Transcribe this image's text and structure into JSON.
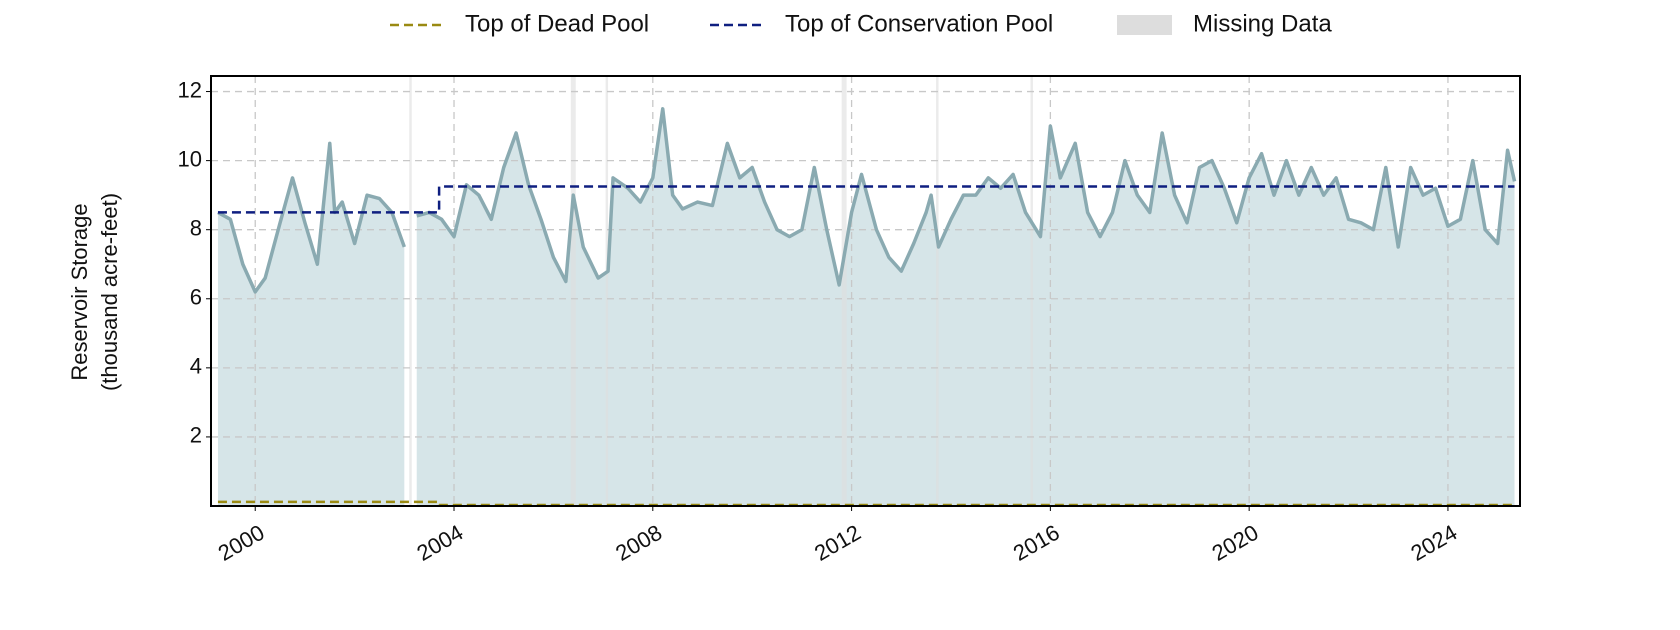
{
  "chart_data": {
    "type": "line",
    "y_label": [
      "Reservoir Storage",
      "(thousand acre-feet)"
    ],
    "x": [
      1999.25,
      1999.5,
      1999.75,
      2000.0,
      2000.2,
      2000.5,
      2000.75,
      2001.0,
      2001.25,
      2001.5,
      2001.6,
      2001.75,
      2002.0,
      2002.25,
      2002.5,
      2002.75,
      2003.0,
      2003.1,
      2003.25,
      2003.5,
      2003.75,
      2004.0,
      2004.25,
      2004.5,
      2004.75,
      2005.0,
      2005.25,
      2005.5,
      2005.75,
      2006.0,
      2006.25,
      2006.4,
      2006.6,
      2006.9,
      2007.1,
      2007.2,
      2007.5,
      2007.75,
      2008.0,
      2008.2,
      2008.4,
      2008.6,
      2008.9,
      2009.2,
      2009.5,
      2009.75,
      2010.0,
      2010.25,
      2010.5,
      2010.75,
      2011.0,
      2011.25,
      2011.5,
      2011.75,
      2012.0,
      2012.2,
      2012.5,
      2012.75,
      2013.0,
      2013.25,
      2013.5,
      2013.6,
      2013.75,
      2014.0,
      2014.25,
      2014.5,
      2014.75,
      2015.0,
      2015.25,
      2015.5,
      2015.8,
      2016.0,
      2016.2,
      2016.5,
      2016.75,
      2017.0,
      2017.25,
      2017.5,
      2017.75,
      2018.0,
      2018.25,
      2018.5,
      2018.75,
      2019.0,
      2019.25,
      2019.5,
      2019.75,
      2020.0,
      2020.25,
      2020.5,
      2020.75,
      2021.0,
      2021.25,
      2021.5,
      2021.75,
      2022.0,
      2022.25,
      2022.5,
      2022.75,
      2023.0,
      2023.25,
      2023.5,
      2023.75,
      2024.0,
      2024.25,
      2024.5,
      2024.75,
      2025.0,
      2025.2,
      2025.34
    ],
    "series": [
      {
        "color": "#8aaab1",
        "fill": "#d6e5e8",
        "values": [
          8.5,
          8.3,
          7.0,
          6.2,
          6.6,
          8.2,
          9.5,
          8.2,
          7.0,
          10.5,
          8.5,
          8.8,
          7.6,
          9.0,
          8.9,
          8.5,
          7.5,
          null,
          8.4,
          8.5,
          8.3,
          7.8,
          9.3,
          9.0,
          8.3,
          9.8,
          10.8,
          9.3,
          8.3,
          7.2,
          6.5,
          9.0,
          7.5,
          6.6,
          6.8,
          9.5,
          9.2,
          8.8,
          9.5,
          11.5,
          9.0,
          8.6,
          8.8,
          8.7,
          10.5,
          9.5,
          9.8,
          8.8,
          8.0,
          7.8,
          8.0,
          9.8,
          8.0,
          6.4,
          8.5,
          9.6,
          8.0,
          7.2,
          6.8,
          7.6,
          8.5,
          9.0,
          7.5,
          8.3,
          9.0,
          9.0,
          9.5,
          9.2,
          9.6,
          8.5,
          7.8,
          11.0,
          9.5,
          10.5,
          8.5,
          7.8,
          8.5,
          10.0,
          9.0,
          8.5,
          10.8,
          9.0,
          8.2,
          9.8,
          10.0,
          9.2,
          8.2,
          9.5,
          10.2,
          9.0,
          10.0,
          9.0,
          9.8,
          9.0,
          9.5,
          8.3,
          8.2,
          8.0,
          9.8,
          7.5,
          9.8,
          9.0,
          9.2,
          8.1,
          8.3,
          10.0,
          8.0,
          7.6,
          10.3,
          9.4
        ]
      }
    ],
    "pools": [
      {
        "name": "Top of Dead Pool",
        "color": "#9a8a12",
        "x": [
          1999.25,
          2003.7,
          2003.7,
          2025.34
        ],
        "values": [
          0.12,
          0.12,
          0.03,
          0.03
        ]
      },
      {
        "name": "Top of Conservation Pool",
        "color": "#0f1f80",
        "x": [
          1999.25,
          2003.7,
          2003.7,
          2025.34
        ],
        "values": [
          8.5,
          8.5,
          9.25,
          9.25
        ]
      }
    ],
    "missing_data": {
      "name": "Missing Data",
      "color": "#dddddd",
      "spans": [
        [
          2003.1,
          2003.15
        ],
        [
          2006.35,
          2006.45
        ],
        [
          2007.05,
          2007.1
        ],
        [
          2011.8,
          2011.9
        ],
        [
          2013.7,
          2013.75
        ],
        [
          2015.6,
          2015.65
        ]
      ]
    },
    "xlim": [
      1999.11,
      2025.45
    ],
    "xticks": [
      2000,
      2004,
      2008,
      2012,
      2016,
      2020,
      2024
    ],
    "ylim": [
      0,
      12.45
    ],
    "yticks": [
      2,
      4,
      6,
      8,
      10,
      12
    ],
    "grid": true
  }
}
